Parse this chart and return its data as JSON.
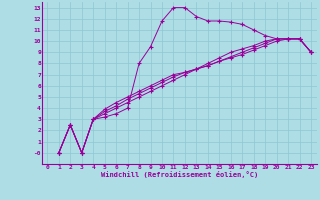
{
  "xlabel": "Windchill (Refroidissement éolien,°C)",
  "bg_color": "#aedde6",
  "line_color": "#990099",
  "grid_color": "#8cc8d2",
  "xlim": [
    -0.5,
    23.5
  ],
  "ylim": [
    -1.0,
    13.5
  ],
  "xticks": [
    0,
    1,
    2,
    3,
    4,
    5,
    6,
    7,
    8,
    9,
    10,
    11,
    12,
    13,
    14,
    15,
    16,
    17,
    18,
    19,
    20,
    21,
    22,
    23
  ],
  "ytick_vals": [
    0,
    1,
    2,
    3,
    4,
    5,
    6,
    7,
    8,
    9,
    10,
    11,
    12,
    13
  ],
  "ytick_labels": [
    "-0",
    "1",
    "2",
    "3",
    "4",
    "5",
    "6",
    "7",
    "8",
    "9",
    "10",
    "11",
    "12",
    "13"
  ],
  "series": [
    [
      0,
      2.5,
      0.0,
      3.0,
      3.2,
      3.5,
      4.0,
      8.0,
      9.5,
      11.8,
      13.0,
      13.0,
      12.2,
      11.8,
      11.8,
      11.7,
      11.5,
      11.0,
      10.5,
      10.2,
      10.2,
      10.2,
      9.0
    ],
    [
      0,
      2.5,
      0.0,
      3.0,
      3.5,
      4.0,
      4.5,
      5.0,
      5.5,
      6.0,
      6.5,
      7.0,
      7.5,
      8.0,
      8.5,
      9.0,
      9.3,
      9.6,
      10.0,
      10.2,
      10.2,
      10.2,
      9.0
    ],
    [
      0,
      2.5,
      0.0,
      3.0,
      3.7,
      4.2,
      4.8,
      5.3,
      5.8,
      6.3,
      6.8,
      7.2,
      7.5,
      7.8,
      8.2,
      8.6,
      9.0,
      9.4,
      9.8,
      10.2,
      10.2,
      10.2,
      9.0
    ],
    [
      0,
      2.5,
      0.0,
      3.0,
      3.9,
      4.5,
      5.0,
      5.5,
      6.0,
      6.5,
      7.0,
      7.2,
      7.5,
      7.8,
      8.2,
      8.5,
      8.8,
      9.2,
      9.6,
      10.0,
      10.2,
      10.2,
      9.0
    ]
  ],
  "series_x": [
    [
      1,
      2,
      3,
      4,
      5,
      6,
      7,
      8,
      9,
      10,
      11,
      12,
      13,
      14,
      15,
      16,
      17,
      18,
      19,
      20,
      21,
      22,
      23
    ],
    [
      1,
      2,
      3,
      4,
      5,
      6,
      7,
      8,
      9,
      10,
      11,
      12,
      13,
      14,
      15,
      16,
      17,
      18,
      19,
      20,
      21,
      22,
      23
    ],
    [
      1,
      2,
      3,
      4,
      5,
      6,
      7,
      8,
      9,
      10,
      11,
      12,
      13,
      14,
      15,
      16,
      17,
      18,
      19,
      20,
      21,
      22,
      23
    ],
    [
      1,
      2,
      3,
      4,
      5,
      6,
      7,
      8,
      9,
      10,
      11,
      12,
      13,
      14,
      15,
      16,
      17,
      18,
      19,
      20,
      21,
      22,
      23
    ]
  ]
}
